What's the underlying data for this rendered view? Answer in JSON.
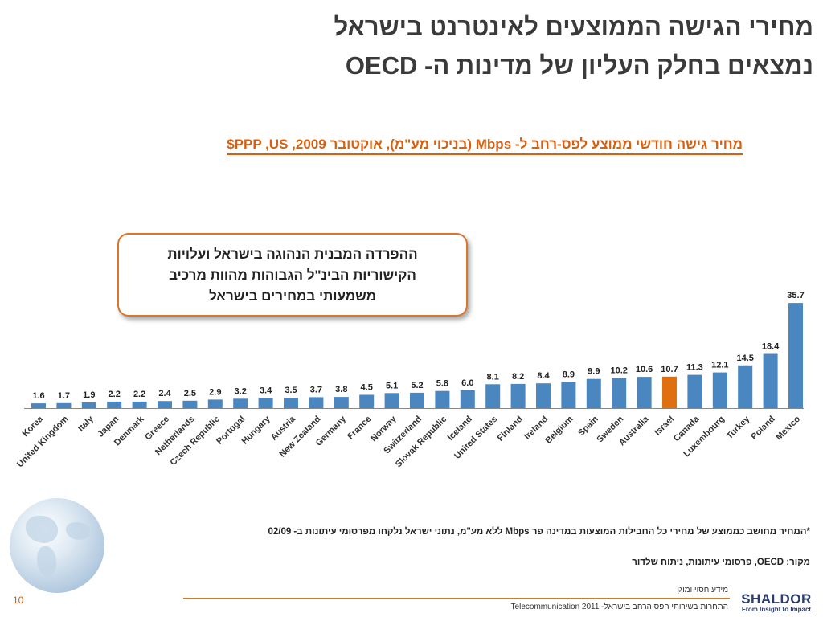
{
  "title": {
    "line1": "מחירי הגישה הממוצעים לאינטרנט בישראל",
    "line2": "נמצאים בחלק העליון של מדינות ה- OECD"
  },
  "callout": {
    "line1": "ההפרדה המבנית הנהוגה בישראל ועלויות",
    "line2": "הקישוריות הבינ\"ל הגבוהות מהוות מרכיב",
    "line3": "משמעותי במחירים בישראל"
  },
  "chart_data": {
    "type": "bar",
    "title": "מחיר גישה חודשי ממוצע לפס-רחב ל- Mbps (בניכוי מע\"מ), אוקטובר 2009, PPP ,US$",
    "categories": [
      "Korea",
      "United Kingdom",
      "Italy",
      "Japan",
      "Denmark",
      "Greece",
      "Netherlands",
      "Czech Republic",
      "Portugal",
      "Hungary",
      "Austria",
      "New Zealand",
      "Germany",
      "France",
      "Norway",
      "Switzerland",
      "Slovak Republic",
      "Iceland",
      "United States",
      "Finland",
      "Ireland",
      "Belgium",
      "Spain",
      "Sweden",
      "Australia",
      "Israel",
      "Canada",
      "Luxembourg",
      "Turkey",
      "Poland",
      "Mexico"
    ],
    "values": [
      1.6,
      1.7,
      1.9,
      2.2,
      2.2,
      2.4,
      2.5,
      2.9,
      3.2,
      3.4,
      3.5,
      3.7,
      3.8,
      4.5,
      5.1,
      5.2,
      5.8,
      6.0,
      8.1,
      8.2,
      8.4,
      8.9,
      9.9,
      10.2,
      10.6,
      10.7,
      11.3,
      12.1,
      14.5,
      18.4,
      35.7
    ],
    "value_labels": [
      "1.6",
      "1.7",
      "1.9",
      "2.2",
      "2.2",
      "2.4",
      "2.5",
      "2.9",
      "3.2",
      "3.4",
      "3.5",
      "3.7",
      "3.8",
      "4.5",
      "5.1",
      "5.2",
      "5.8",
      "6.0",
      "8.1",
      "8.2",
      "8.4",
      "8.9",
      "9.9",
      "10.2",
      "10.6",
      "10.7",
      "11.3",
      "12.1",
      "14.5",
      "18.4",
      "35.7"
    ],
    "ylim": [
      0,
      36
    ],
    "highlight": "Israel",
    "colors": {
      "bar": "#4a86bf",
      "highlight": "#e0700f"
    }
  },
  "footnote": "*המחיר מחושב כממוצע של מחירי כל החבילות המוצעות במדינה פר Mbps ללא מע\"מ, נתוני ישראל נלקחו מפרסומי עיתונות  ב- 02/09",
  "source": "מקור: OECD, פרסומי עיתונות, ניתוח שלדור",
  "footer": {
    "page": "10",
    "small": "מידע חסוי ומוגן",
    "bottom": "התחרות בשירותי הפס הרחב בישראל- Telecommunication 2011",
    "logo": "SHALDOR",
    "tagline": "From Insight to Impact"
  }
}
